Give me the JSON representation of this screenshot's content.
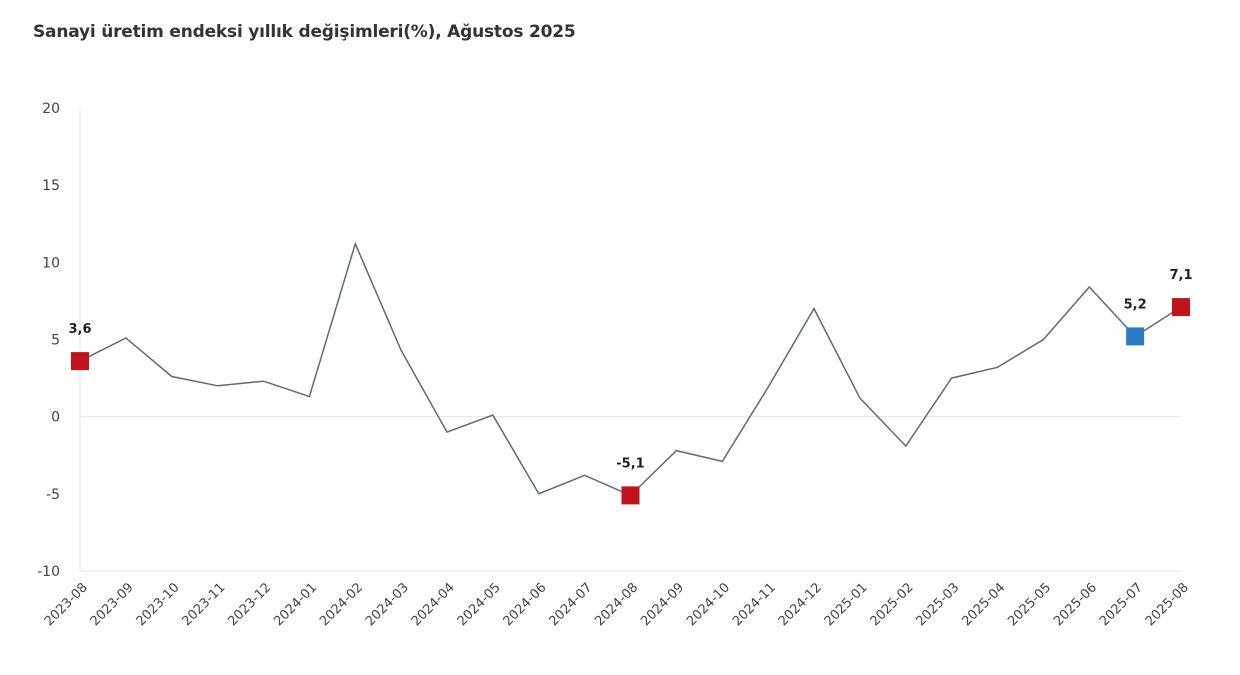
{
  "chart_data": {
    "type": "line",
    "title": "Sanayi üretim endeksi yıllık değişimleri(%), Ağustos 2025",
    "xlabel": "",
    "ylabel": "",
    "ylim": [
      -10,
      20
    ],
    "yticks": [
      20,
      15,
      10,
      5,
      0,
      -5,
      -10
    ],
    "grid": false,
    "zero_line": true,
    "categories": [
      "2023-08",
      "2023-09",
      "2023-10",
      "2023-11",
      "2023-12",
      "2024-01",
      "2024-02",
      "2024-03",
      "2024-04",
      "2024-05",
      "2024-06",
      "2024-07",
      "2024-08",
      "2024-09",
      "2024-10",
      "2024-11",
      "2024-12",
      "2025-01",
      "2025-02",
      "2025-03",
      "2025-04",
      "2025-05",
      "2025-06",
      "2025-07",
      "2025-08"
    ],
    "series": [
      {
        "name": "Sanayi üretim endeksi yıllık değişim (%)",
        "color": "#5f6b70",
        "values": [
          3.6,
          5.1,
          2.6,
          2.0,
          2.3,
          1.3,
          11.2,
          4.3,
          -1.0,
          0.1,
          -5.0,
          -3.8,
          -5.1,
          -2.2,
          -2.9,
          1.9,
          7.0,
          1.2,
          -1.9,
          2.5,
          3.2,
          5.0,
          8.4,
          5.2,
          7.1
        ]
      }
    ],
    "highlighted_points": [
      {
        "index": 0,
        "label": "3,6",
        "color": "#c0141c"
      },
      {
        "index": 12,
        "label": "-5,1",
        "color": "#c0141c"
      },
      {
        "index": 23,
        "label": "5,2",
        "color": "#2e7bc4"
      },
      {
        "index": 24,
        "label": "7,1",
        "color": "#c0141c"
      }
    ]
  },
  "colors": {
    "line": "#5f6b70",
    "highlight_red": "#c0141c",
    "highlight_blue": "#2e7bc4",
    "axis": "#e3e3e3"
  }
}
